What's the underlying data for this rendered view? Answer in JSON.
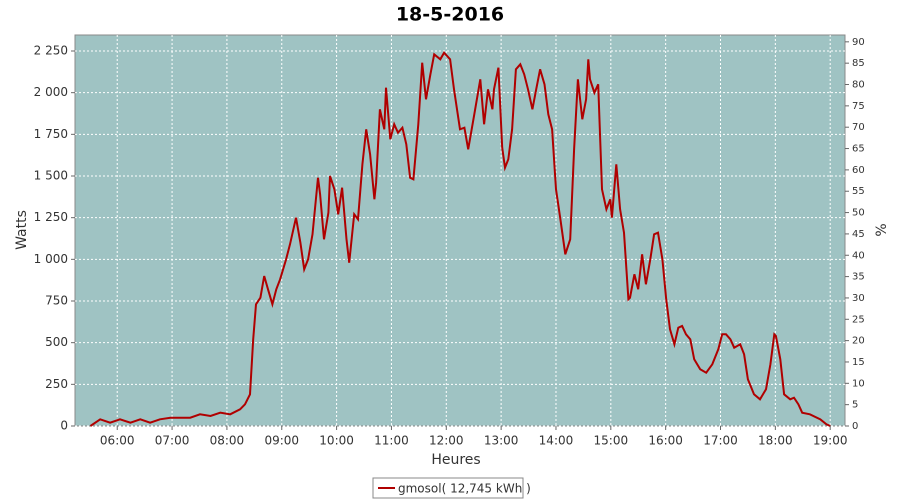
{
  "chart_data": {
    "type": "line",
    "title": "18-5-2016",
    "x_label": "Heures",
    "y_label": "Watts",
    "y2_label": "%",
    "x": [
      5.51,
      5.69,
      5.87,
      6.05,
      6.24,
      6.42,
      6.6,
      6.78,
      6.97,
      7.33,
      7.51,
      7.7,
      7.88,
      8.06,
      8.24,
      8.33,
      8.42,
      8.48,
      8.53,
      8.61,
      8.68,
      8.75,
      8.83,
      8.9,
      8.97,
      9.08,
      9.15,
      9.26,
      9.34,
      9.41,
      9.48,
      9.56,
      9.66,
      9.7,
      9.77,
      9.85,
      9.88,
      9.96,
      10.03,
      10.1,
      10.18,
      10.23,
      10.32,
      10.39,
      10.47,
      10.54,
      10.61,
      10.69,
      10.72,
      10.79,
      10.87,
      10.9,
      10.98,
      11.05,
      11.12,
      11.2,
      11.27,
      11.34,
      11.4,
      11.49,
      11.56,
      11.63,
      11.71,
      11.78,
      11.89,
      11.96,
      12.07,
      12.14,
      12.25,
      12.33,
      12.4,
      12.51,
      12.62,
      12.69,
      12.76,
      12.84,
      12.87,
      12.95,
      13.02,
      13.07,
      13.13,
      13.2,
      13.27,
      13.35,
      13.42,
      13.49,
      13.57,
      13.64,
      13.71,
      13.79,
      13.86,
      13.93,
      14.0,
      14.08,
      14.17,
      14.26,
      14.33,
      14.4,
      14.48,
      14.55,
      14.59,
      14.62,
      14.7,
      14.77,
      14.84,
      14.92,
      14.99,
      15.02,
      15.1,
      15.17,
      15.24,
      15.32,
      15.35,
      15.43,
      15.5,
      15.57,
      15.64,
      15.72,
      15.79,
      15.86,
      15.94,
      16.01,
      16.08,
      16.16,
      16.23,
      16.3,
      16.37,
      16.45,
      16.52,
      16.63,
      16.74,
      16.85,
      16.96,
      17.03,
      17.1,
      17.18,
      17.25,
      17.36,
      17.43,
      17.5,
      17.61,
      17.72,
      17.83,
      17.91,
      17.98,
      18.01,
      18.09,
      18.16,
      18.27,
      18.34,
      18.42,
      18.49,
      18.63,
      18.82,
      18.93,
      19.0
    ],
    "series": [
      {
        "name": "gmosol( 12,745 kWh )",
        "color": "#b00000",
        "values": [
          0,
          40,
          20,
          40,
          20,
          40,
          20,
          40,
          50,
          50,
          70,
          60,
          80,
          70,
          100,
          130,
          190,
          520,
          730,
          770,
          900,
          820,
          730,
          820,
          880,
          1000,
          1090,
          1250,
          1100,
          940,
          1000,
          1150,
          1490,
          1390,
          1120,
          1280,
          1500,
          1420,
          1270,
          1430,
          1120,
          980,
          1270,
          1240,
          1570,
          1780,
          1630,
          1360,
          1460,
          1900,
          1780,
          2030,
          1720,
          1810,
          1760,
          1790,
          1690,
          1490,
          1480,
          1810,
          2180,
          1960,
          2110,
          2230,
          2200,
          2240,
          2200,
          2020,
          1780,
          1790,
          1660,
          1870,
          2080,
          1810,
          2020,
          1900,
          2020,
          2150,
          1670,
          1550,
          1600,
          1780,
          2140,
          2170,
          2110,
          2020,
          1900,
          2020,
          2140,
          2050,
          1870,
          1780,
          1420,
          1240,
          1030,
          1120,
          1660,
          2080,
          1840,
          1960,
          2200,
          2080,
          2000,
          2050,
          1420,
          1300,
          1360,
          1250,
          1570,
          1300,
          1160,
          760,
          770,
          910,
          820,
          1030,
          850,
          1000,
          1150,
          1160,
          1000,
          760,
          580,
          490,
          590,
          600,
          550,
          520,
          400,
          340,
          320,
          370,
          460,
          550,
          550,
          520,
          470,
          490,
          430,
          280,
          190,
          160,
          220,
          370,
          550,
          540,
          400,
          190,
          160,
          170,
          130,
          80,
          70,
          40,
          10,
          0
        ]
      }
    ],
    "xlim": [
      5.23,
      19.27
    ],
    "xticks": [
      {
        "value": 6,
        "label": "06:00"
      },
      {
        "value": 7,
        "label": "07:00"
      },
      {
        "value": 8,
        "label": "08:00"
      },
      {
        "value": 9,
        "label": "09:00"
      },
      {
        "value": 10,
        "label": "10:00"
      },
      {
        "value": 11,
        "label": "11:00"
      },
      {
        "value": 12,
        "label": "12:00"
      },
      {
        "value": 13,
        "label": "13:00"
      },
      {
        "value": 14,
        "label": "14:00"
      },
      {
        "value": 15,
        "label": "15:00"
      },
      {
        "value": 16,
        "label": "16:00"
      },
      {
        "value": 17,
        "label": "17:00"
      },
      {
        "value": 18,
        "label": "18:00"
      },
      {
        "value": 19,
        "label": "19:00"
      }
    ],
    "ylim": [
      0,
      2346
    ],
    "yticks": [
      0,
      250,
      500,
      750,
      {
        "value": 1000,
        "label": "1 000"
      },
      {
        "value": 1250,
        "label": "1 250"
      },
      {
        "value": 1500,
        "label": "1 500"
      },
      {
        "value": 1750,
        "label": "1 750"
      },
      {
        "value": 2000,
        "label": "2 000"
      },
      {
        "value": 2250,
        "label": "2 250"
      }
    ],
    "y2lim": [
      0,
      91.6
    ],
    "y2ticks": [
      0,
      5,
      10,
      15,
      20,
      25,
      30,
      35,
      40,
      45,
      50,
      55,
      60,
      65,
      70,
      75,
      80,
      85,
      90
    ],
    "grid": true,
    "legend": "bottom",
    "plot_background": "#9fc3c3"
  }
}
